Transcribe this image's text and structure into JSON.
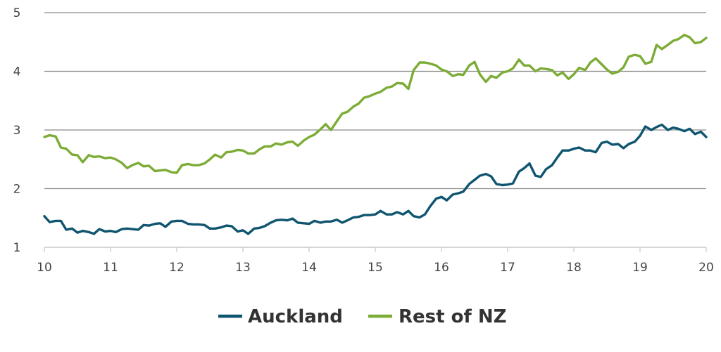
{
  "chart_data": {
    "type": "line",
    "xlim": [
      10,
      20
    ],
    "ylim": [
      1,
      5
    ],
    "grid": "horizontal",
    "legend_position": "bottom-center",
    "x_ticks": [
      "10",
      "11",
      "12",
      "13",
      "14",
      "15",
      "16",
      "17",
      "18",
      "19",
      "20"
    ],
    "y_ticks": [
      "1",
      "2",
      "3",
      "4",
      "5"
    ],
    "series": [
      {
        "name": "Auckland",
        "color": "#0f5570",
        "points": [
          [
            10.0,
            1.53
          ],
          [
            10.08,
            1.43
          ],
          [
            10.17,
            1.45
          ],
          [
            10.25,
            1.45
          ],
          [
            10.33,
            1.3
          ],
          [
            10.42,
            1.32
          ],
          [
            10.5,
            1.25
          ],
          [
            10.58,
            1.28
          ],
          [
            10.67,
            1.26
          ],
          [
            10.75,
            1.23
          ],
          [
            10.83,
            1.31
          ],
          [
            10.92,
            1.27
          ],
          [
            11.0,
            1.28
          ],
          [
            11.08,
            1.26
          ],
          [
            11.17,
            1.31
          ],
          [
            11.25,
            1.32
          ],
          [
            11.33,
            1.31
          ],
          [
            11.42,
            1.3
          ],
          [
            11.5,
            1.38
          ],
          [
            11.58,
            1.37
          ],
          [
            11.67,
            1.4
          ],
          [
            11.75,
            1.41
          ],
          [
            11.83,
            1.35
          ],
          [
            11.92,
            1.44
          ],
          [
            12.0,
            1.45
          ],
          [
            12.08,
            1.45
          ],
          [
            12.17,
            1.4
          ],
          [
            12.25,
            1.39
          ],
          [
            12.33,
            1.39
          ],
          [
            12.42,
            1.38
          ],
          [
            12.5,
            1.32
          ],
          [
            12.58,
            1.32
          ],
          [
            12.67,
            1.34
          ],
          [
            12.75,
            1.37
          ],
          [
            12.83,
            1.36
          ],
          [
            12.92,
            1.27
          ],
          [
            13.0,
            1.29
          ],
          [
            13.08,
            1.23
          ],
          [
            13.17,
            1.32
          ],
          [
            13.25,
            1.33
          ],
          [
            13.33,
            1.36
          ],
          [
            13.42,
            1.42
          ],
          [
            13.5,
            1.46
          ],
          [
            13.58,
            1.47
          ],
          [
            13.67,
            1.46
          ],
          [
            13.75,
            1.49
          ],
          [
            13.83,
            1.42
          ],
          [
            13.92,
            1.41
          ],
          [
            14.0,
            1.4
          ],
          [
            14.08,
            1.45
          ],
          [
            14.17,
            1.42
          ],
          [
            14.25,
            1.44
          ],
          [
            14.33,
            1.44
          ],
          [
            14.42,
            1.47
          ],
          [
            14.5,
            1.42
          ],
          [
            14.58,
            1.46
          ],
          [
            14.67,
            1.51
          ],
          [
            14.75,
            1.52
          ],
          [
            14.83,
            1.55
          ],
          [
            14.92,
            1.55
          ],
          [
            15.0,
            1.56
          ],
          [
            15.08,
            1.62
          ],
          [
            15.17,
            1.56
          ],
          [
            15.25,
            1.56
          ],
          [
            15.33,
            1.6
          ],
          [
            15.42,
            1.56
          ],
          [
            15.5,
            1.62
          ],
          [
            15.58,
            1.53
          ],
          [
            15.67,
            1.51
          ],
          [
            15.75,
            1.56
          ],
          [
            15.83,
            1.7
          ],
          [
            15.92,
            1.83
          ],
          [
            16.0,
            1.86
          ],
          [
            16.08,
            1.8
          ],
          [
            16.17,
            1.9
          ],
          [
            16.25,
            1.92
          ],
          [
            16.33,
            1.95
          ],
          [
            16.42,
            2.08
          ],
          [
            16.5,
            2.15
          ],
          [
            16.58,
            2.22
          ],
          [
            16.67,
            2.25
          ],
          [
            16.75,
            2.21
          ],
          [
            16.83,
            2.08
          ],
          [
            16.92,
            2.06
          ],
          [
            17.0,
            2.07
          ],
          [
            17.08,
            2.09
          ],
          [
            17.17,
            2.29
          ],
          [
            17.25,
            2.35
          ],
          [
            17.33,
            2.43
          ],
          [
            17.42,
            2.22
          ],
          [
            17.5,
            2.2
          ],
          [
            17.58,
            2.33
          ],
          [
            17.67,
            2.4
          ],
          [
            17.75,
            2.53
          ],
          [
            17.83,
            2.65
          ],
          [
            17.92,
            2.65
          ],
          [
            18.0,
            2.68
          ],
          [
            18.08,
            2.7
          ],
          [
            18.17,
            2.65
          ],
          [
            18.25,
            2.65
          ],
          [
            18.33,
            2.62
          ],
          [
            18.42,
            2.78
          ],
          [
            18.5,
            2.8
          ],
          [
            18.58,
            2.75
          ],
          [
            18.67,
            2.76
          ],
          [
            18.75,
            2.69
          ],
          [
            18.83,
            2.76
          ],
          [
            18.92,
            2.8
          ],
          [
            19.0,
            2.9
          ],
          [
            19.08,
            3.06
          ],
          [
            19.17,
            3.0
          ],
          [
            19.25,
            3.05
          ],
          [
            19.33,
            3.09
          ],
          [
            19.42,
            3.0
          ],
          [
            19.5,
            3.04
          ],
          [
            19.58,
            3.02
          ],
          [
            19.67,
            2.98
          ],
          [
            19.75,
            3.02
          ],
          [
            19.83,
            2.93
          ],
          [
            19.92,
            2.97
          ],
          [
            20.0,
            2.88
          ]
        ]
      },
      {
        "name": "Rest of NZ",
        "color": "#7cac36",
        "points": [
          [
            10.0,
            2.88
          ],
          [
            10.08,
            2.91
          ],
          [
            10.17,
            2.89
          ],
          [
            10.25,
            2.7
          ],
          [
            10.33,
            2.68
          ],
          [
            10.42,
            2.58
          ],
          [
            10.5,
            2.57
          ],
          [
            10.58,
            2.45
          ],
          [
            10.67,
            2.57
          ],
          [
            10.75,
            2.54
          ],
          [
            10.83,
            2.55
          ],
          [
            10.92,
            2.52
          ],
          [
            11.0,
            2.53
          ],
          [
            11.08,
            2.5
          ],
          [
            11.17,
            2.44
          ],
          [
            11.25,
            2.35
          ],
          [
            11.33,
            2.4
          ],
          [
            11.42,
            2.44
          ],
          [
            11.5,
            2.38
          ],
          [
            11.58,
            2.39
          ],
          [
            11.67,
            2.3
          ],
          [
            11.75,
            2.31
          ],
          [
            11.83,
            2.32
          ],
          [
            11.92,
            2.28
          ],
          [
            12.0,
            2.27
          ],
          [
            12.08,
            2.4
          ],
          [
            12.17,
            2.42
          ],
          [
            12.25,
            2.4
          ],
          [
            12.33,
            2.4
          ],
          [
            12.42,
            2.43
          ],
          [
            12.5,
            2.5
          ],
          [
            12.58,
            2.58
          ],
          [
            12.67,
            2.53
          ],
          [
            12.75,
            2.62
          ],
          [
            12.83,
            2.63
          ],
          [
            12.92,
            2.66
          ],
          [
            13.0,
            2.65
          ],
          [
            13.08,
            2.6
          ],
          [
            13.17,
            2.6
          ],
          [
            13.25,
            2.67
          ],
          [
            13.33,
            2.72
          ],
          [
            13.42,
            2.72
          ],
          [
            13.5,
            2.77
          ],
          [
            13.58,
            2.75
          ],
          [
            13.67,
            2.79
          ],
          [
            13.75,
            2.8
          ],
          [
            13.83,
            2.73
          ],
          [
            13.92,
            2.82
          ],
          [
            14.0,
            2.88
          ],
          [
            14.08,
            2.92
          ],
          [
            14.17,
            3.01
          ],
          [
            14.25,
            3.1
          ],
          [
            14.33,
            3.0
          ],
          [
            14.42,
            3.15
          ],
          [
            14.5,
            3.28
          ],
          [
            14.58,
            3.31
          ],
          [
            14.67,
            3.4
          ],
          [
            14.75,
            3.45
          ],
          [
            14.83,
            3.55
          ],
          [
            14.92,
            3.58
          ],
          [
            15.0,
            3.62
          ],
          [
            15.08,
            3.65
          ],
          [
            15.17,
            3.72
          ],
          [
            15.25,
            3.74
          ],
          [
            15.33,
            3.8
          ],
          [
            15.42,
            3.79
          ],
          [
            15.5,
            3.7
          ],
          [
            15.58,
            4.02
          ],
          [
            15.67,
            4.15
          ],
          [
            15.75,
            4.15
          ],
          [
            15.83,
            4.13
          ],
          [
            15.92,
            4.1
          ],
          [
            16.0,
            4.03
          ],
          [
            16.08,
            4.0
          ],
          [
            16.17,
            3.92
          ],
          [
            16.25,
            3.95
          ],
          [
            16.33,
            3.94
          ],
          [
            16.42,
            4.1
          ],
          [
            16.5,
            4.16
          ],
          [
            16.58,
            3.95
          ],
          [
            16.67,
            3.82
          ],
          [
            16.75,
            3.92
          ],
          [
            16.83,
            3.89
          ],
          [
            16.92,
            3.98
          ],
          [
            17.0,
            4.0
          ],
          [
            17.08,
            4.05
          ],
          [
            17.17,
            4.2
          ],
          [
            17.25,
            4.1
          ],
          [
            17.33,
            4.1
          ],
          [
            17.42,
            4.0
          ],
          [
            17.5,
            4.05
          ],
          [
            17.58,
            4.04
          ],
          [
            17.67,
            4.02
          ],
          [
            17.75,
            3.93
          ],
          [
            17.83,
            3.98
          ],
          [
            17.92,
            3.87
          ],
          [
            18.0,
            3.95
          ],
          [
            18.08,
            4.06
          ],
          [
            18.17,
            4.02
          ],
          [
            18.25,
            4.15
          ],
          [
            18.33,
            4.22
          ],
          [
            18.42,
            4.12
          ],
          [
            18.5,
            4.03
          ],
          [
            18.58,
            3.96
          ],
          [
            18.67,
            3.99
          ],
          [
            18.75,
            4.07
          ],
          [
            18.83,
            4.25
          ],
          [
            18.92,
            4.28
          ],
          [
            19.0,
            4.26
          ],
          [
            19.08,
            4.13
          ],
          [
            19.17,
            4.16
          ],
          [
            19.25,
            4.45
          ],
          [
            19.33,
            4.38
          ],
          [
            19.42,
            4.45
          ],
          [
            19.5,
            4.52
          ],
          [
            19.58,
            4.55
          ],
          [
            19.67,
            4.62
          ],
          [
            19.75,
            4.58
          ],
          [
            19.83,
            4.48
          ],
          [
            19.92,
            4.5
          ],
          [
            20.0,
            4.57
          ]
        ]
      }
    ]
  }
}
